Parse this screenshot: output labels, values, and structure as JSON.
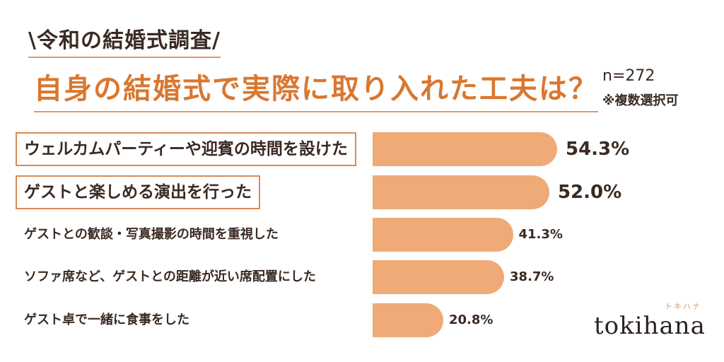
{
  "tag": "\\令和の結婚式調査/",
  "title": "自身の結婚式で実際に取り入れた工夫は？",
  "sample_label": "n=272",
  "note": "※複数選択可",
  "logo": {
    "text": "tokihana",
    "ruby": "トキハナ"
  },
  "chart_data": {
    "type": "bar",
    "orientation": "horizontal",
    "categories": [
      "ウェルカムパーティーや迎賓の時間を設けた",
      "ゲストと楽しめる演出を行った",
      "ゲストとの歓談・写真撮影の時間を重視した",
      "ソファ席など、ゲストとの距離が近い席配置にした",
      "ゲスト卓で一緒に食事をした"
    ],
    "values": [
      54.3,
      52.0,
      41.3,
      38.7,
      20.8
    ],
    "value_labels": [
      "54.3%",
      "52.0%",
      "41.3%",
      "38.7%",
      "20.8%"
    ],
    "highlighted": [
      true,
      true,
      false,
      false,
      false
    ],
    "xlim": [
      0,
      100
    ],
    "bar_color": "#efaa78",
    "highlight_border_color": "#d98c52",
    "title_color": "#d9772f"
  }
}
